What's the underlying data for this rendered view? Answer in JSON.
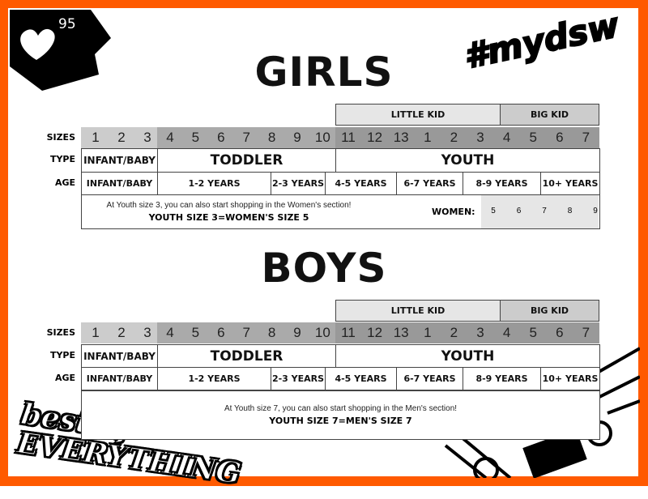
{
  "badge": {
    "number": "95",
    "icon": "heart-icon"
  },
  "hashtag": "#mydsw",
  "logo_text": "best of EVERYTHING",
  "colors": {
    "border": "#ff5a00",
    "infant_band": "#cccccc",
    "toddler_band": "#aaaaaa",
    "youth_band": "#999999",
    "little_kid": "#e6e6e6",
    "big_kid": "#cccccc"
  },
  "row_labels": {
    "sizes": "SIZES",
    "type": "TYPE",
    "age": "AGE"
  },
  "sections": [
    {
      "title": "GIRLS",
      "little_kid": "LITTLE KID",
      "big_kid": "BIG KID",
      "sizes": [
        "1",
        "2",
        "3",
        "4",
        "5",
        "6",
        "7",
        "8",
        "9",
        "10",
        "11",
        "12",
        "13",
        "1",
        "2",
        "3",
        "4",
        "5",
        "6",
        "7"
      ],
      "types": [
        "INFANT/BABY",
        "TODDLER",
        "YOUTH"
      ],
      "ages": [
        "INFANT/BABY",
        "1-2 YEARS",
        "2-3 YEARS",
        "4-5 YEARS",
        "6-7 YEARS",
        "8-9 YEARS",
        "10+ YEARS"
      ],
      "note_line1": "At Youth size 3, you can also start shopping in the Women's section!",
      "note_line2": "YOUTH SIZE 3=WOMEN'S SIZE 5",
      "women_label": "WOMEN:",
      "women_sizes": [
        "5",
        "6",
        "7",
        "8",
        "9"
      ]
    },
    {
      "title": "BOYS",
      "little_kid": "LITTLE KID",
      "big_kid": "BIG KID",
      "sizes": [
        "1",
        "2",
        "3",
        "4",
        "5",
        "6",
        "7",
        "8",
        "9",
        "10",
        "11",
        "12",
        "13",
        "1",
        "2",
        "3",
        "4",
        "5",
        "6",
        "7"
      ],
      "types": [
        "INFANT/BABY",
        "TODDLER",
        "YOUTH"
      ],
      "ages": [
        "INFANT/BABY",
        "1-2 YEARS",
        "2-3 YEARS",
        "4-5 YEARS",
        "6-7 YEARS",
        "8-9 YEARS",
        "10+ YEARS"
      ],
      "note_line1": "At Youth size 7, you can also start shopping in the Men's section!",
      "note_line2": "YOUTH SIZE 7=MEN'S SIZE 7"
    }
  ]
}
